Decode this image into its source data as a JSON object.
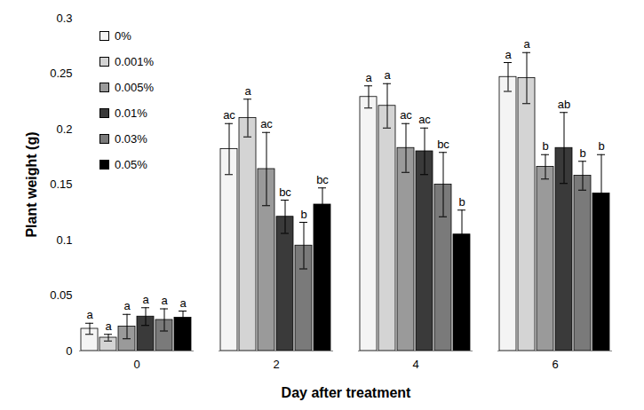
{
  "chart_data": {
    "type": "bar",
    "x_label": "Day after treatment",
    "y_label": "Plant weight (g)",
    "categories": [
      "0",
      "2",
      "4",
      "6"
    ],
    "ylim": [
      0,
      0.3
    ],
    "yticks": [
      0,
      0.05,
      0.1,
      0.15,
      0.2,
      0.25,
      0.3
    ],
    "grid": false,
    "legend": "top-left",
    "series": [
      {
        "name": "0%",
        "color": "#f4f4f4",
        "values": [
          0.02,
          0.182,
          0.229,
          0.247
        ],
        "errors": [
          0.005,
          0.023,
          0.01,
          0.013
        ],
        "letters": [
          "a",
          "ac",
          "a",
          "a"
        ]
      },
      {
        "name": "0.001%",
        "color": "#d4d4d4",
        "values": [
          0.012,
          0.21,
          0.221,
          0.246
        ],
        "errors": [
          0.003,
          0.017,
          0.02,
          0.023
        ],
        "letters": [
          "a",
          "a",
          "a",
          "a"
        ]
      },
      {
        "name": "0.005%",
        "color": "#9a9a9a",
        "values": [
          0.022,
          0.164,
          0.183,
          0.166
        ],
        "errors": [
          0.011,
          0.033,
          0.022,
          0.011
        ],
        "letters": [
          "a",
          "ac",
          "ac",
          "b"
        ]
      },
      {
        "name": "0.01%",
        "color": "#3a3a3a",
        "values": [
          0.031,
          0.121,
          0.18,
          0.183
        ],
        "errors": [
          0.008,
          0.015,
          0.021,
          0.032
        ],
        "letters": [
          "a",
          "bc",
          "ac",
          "ab"
        ]
      },
      {
        "name": "0.03%",
        "color": "#7a7a7a",
        "values": [
          0.028,
          0.095,
          0.15,
          0.158
        ],
        "errors": [
          0.01,
          0.021,
          0.029,
          0.013
        ],
        "letters": [
          "a",
          "b",
          "bc",
          "b"
        ]
      },
      {
        "name": "0.05%",
        "color": "#000000",
        "values": [
          0.03,
          0.132,
          0.105,
          0.142
        ],
        "errors": [
          0.006,
          0.015,
          0.022,
          0.035
        ],
        "letters": [
          "a",
          "bc",
          "b",
          "b"
        ]
      }
    ]
  }
}
